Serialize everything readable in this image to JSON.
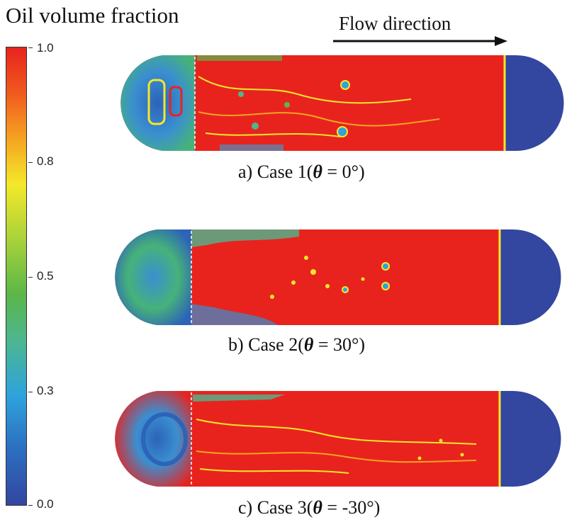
{
  "title": "Oil volume fraction",
  "flow_label": "Flow direction",
  "colorbar": {
    "ticks": [
      "1.0",
      "0.8",
      "0.5",
      "0.3",
      "0.0"
    ],
    "colors": [
      "#e8231e",
      "#f5a421",
      "#f4e82a",
      "#5bb648",
      "#2ea3dc",
      "#3346a0"
    ]
  },
  "panels": [
    {
      "caption_prefix": "a) Case 1(",
      "symbol": "θ",
      "caption_suffix": " = 0°)"
    },
    {
      "caption_prefix": "b) Case 2(",
      "symbol": "θ",
      "caption_suffix": " = 30°)"
    },
    {
      "caption_prefix": "c) Case 3(",
      "symbol": "θ",
      "caption_suffix": " = -30°)"
    }
  ]
}
